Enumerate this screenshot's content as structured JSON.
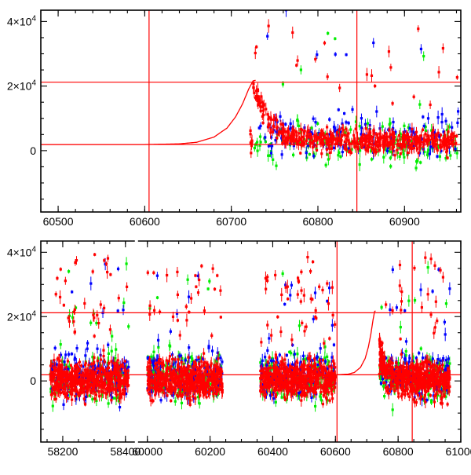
{
  "chart_data": [
    {
      "type": "scatter",
      "title": "",
      "xlabel": "",
      "ylabel": "",
      "xlim": [
        60480,
        60965
      ],
      "ylim": [
        -19000,
        43500
      ],
      "grid": false,
      "x_ticks": [
        60500,
        60600,
        60700,
        60800,
        60900
      ],
      "x_tick_labels": [
        "60500",
        "60600",
        "60700",
        "60800",
        "60900"
      ],
      "y_ticks": [
        {
          "value": 0,
          "base": "0",
          "exp": ""
        },
        {
          "value": 20000,
          "base": "2×10",
          "exp": "4"
        },
        {
          "value": 40000,
          "base": "4×10",
          "exp": "4"
        }
      ],
      "reference_lines": {
        "vertical": [
          60605,
          60845
        ],
        "horizontal": [
          1900,
          21200
        ],
        "color": "#ff0000"
      },
      "model_curve": {
        "color": "#ff0000",
        "points": [
          [
            60480,
            1900
          ],
          [
            60600,
            1900
          ],
          [
            60640,
            2100
          ],
          [
            60660,
            2600
          ],
          [
            60680,
            4200
          ],
          [
            60695,
            7000
          ],
          [
            60705,
            10500
          ],
          [
            60713,
            14500
          ],
          [
            60720,
            19000
          ],
          [
            60725,
            21600
          ],
          [
            60728,
            21800
          ]
        ]
      },
      "series": [
        {
          "name": "blue",
          "color": "#0000ff",
          "x_range": [
            60730,
            60962
          ],
          "y_center": 5000,
          "y_spread": 5000
        },
        {
          "name": "green",
          "color": "#00ee00",
          "x_range": [
            60725,
            60962
          ],
          "y_center": 2000,
          "y_spread": 5000
        },
        {
          "name": "red",
          "color": "#ff0000",
          "x_range": [
            60722,
            60962
          ],
          "y_center": 3000,
          "y_spread": 2500,
          "decay": true
        }
      ]
    },
    {
      "type": "scatter",
      "title": "",
      "xlabel": "",
      "ylabel": "",
      "xlim": [
        58130,
        61000
      ],
      "ylim": [
        -19000,
        43500
      ],
      "grid": false,
      "x_ticks": [
        58200,
        58400,
        60000,
        60200,
        60400,
        60600,
        60800,
        61000
      ],
      "x_tick_labels": [
        "58200",
        "58400",
        "60000",
        "60200",
        "60400",
        "60600",
        "60800",
        "61000"
      ],
      "y_ticks": [
        {
          "value": 0,
          "base": "0",
          "exp": ""
        },
        {
          "value": 20000,
          "base": "2×10",
          "exp": "4"
        },
        {
          "value": 40000,
          "base": "4×10",
          "exp": "4"
        }
      ],
      "axis_break": [
        58420,
        59990
      ],
      "reference_lines": {
        "vertical": [
          60605,
          60845
        ],
        "horizontal": [
          1900,
          21200
        ],
        "color": "#ff0000"
      },
      "model_curve": {
        "color": "#ff0000",
        "points": [
          [
            60600,
            1900
          ],
          [
            60640,
            2100
          ],
          [
            60660,
            2600
          ],
          [
            60680,
            4200
          ],
          [
            60695,
            7000
          ],
          [
            60705,
            10500
          ],
          [
            60713,
            14500
          ],
          [
            60720,
            19000
          ],
          [
            60725,
            21600
          ],
          [
            60728,
            21800
          ]
        ]
      },
      "segments": [
        [
          58160,
          58410
        ],
        [
          60000,
          60240
        ],
        [
          60360,
          60600
        ],
        [
          60740,
          60965
        ]
      ],
      "series": [
        {
          "name": "blue",
          "color": "#0000ff",
          "y_center": 2000,
          "y_spread": 5000
        },
        {
          "name": "green",
          "color": "#00ee00",
          "y_center": 1000,
          "y_spread": 5000
        },
        {
          "name": "red",
          "color": "#ff0000",
          "y_center": 500,
          "y_spread": 4000,
          "decay": true
        }
      ]
    }
  ]
}
